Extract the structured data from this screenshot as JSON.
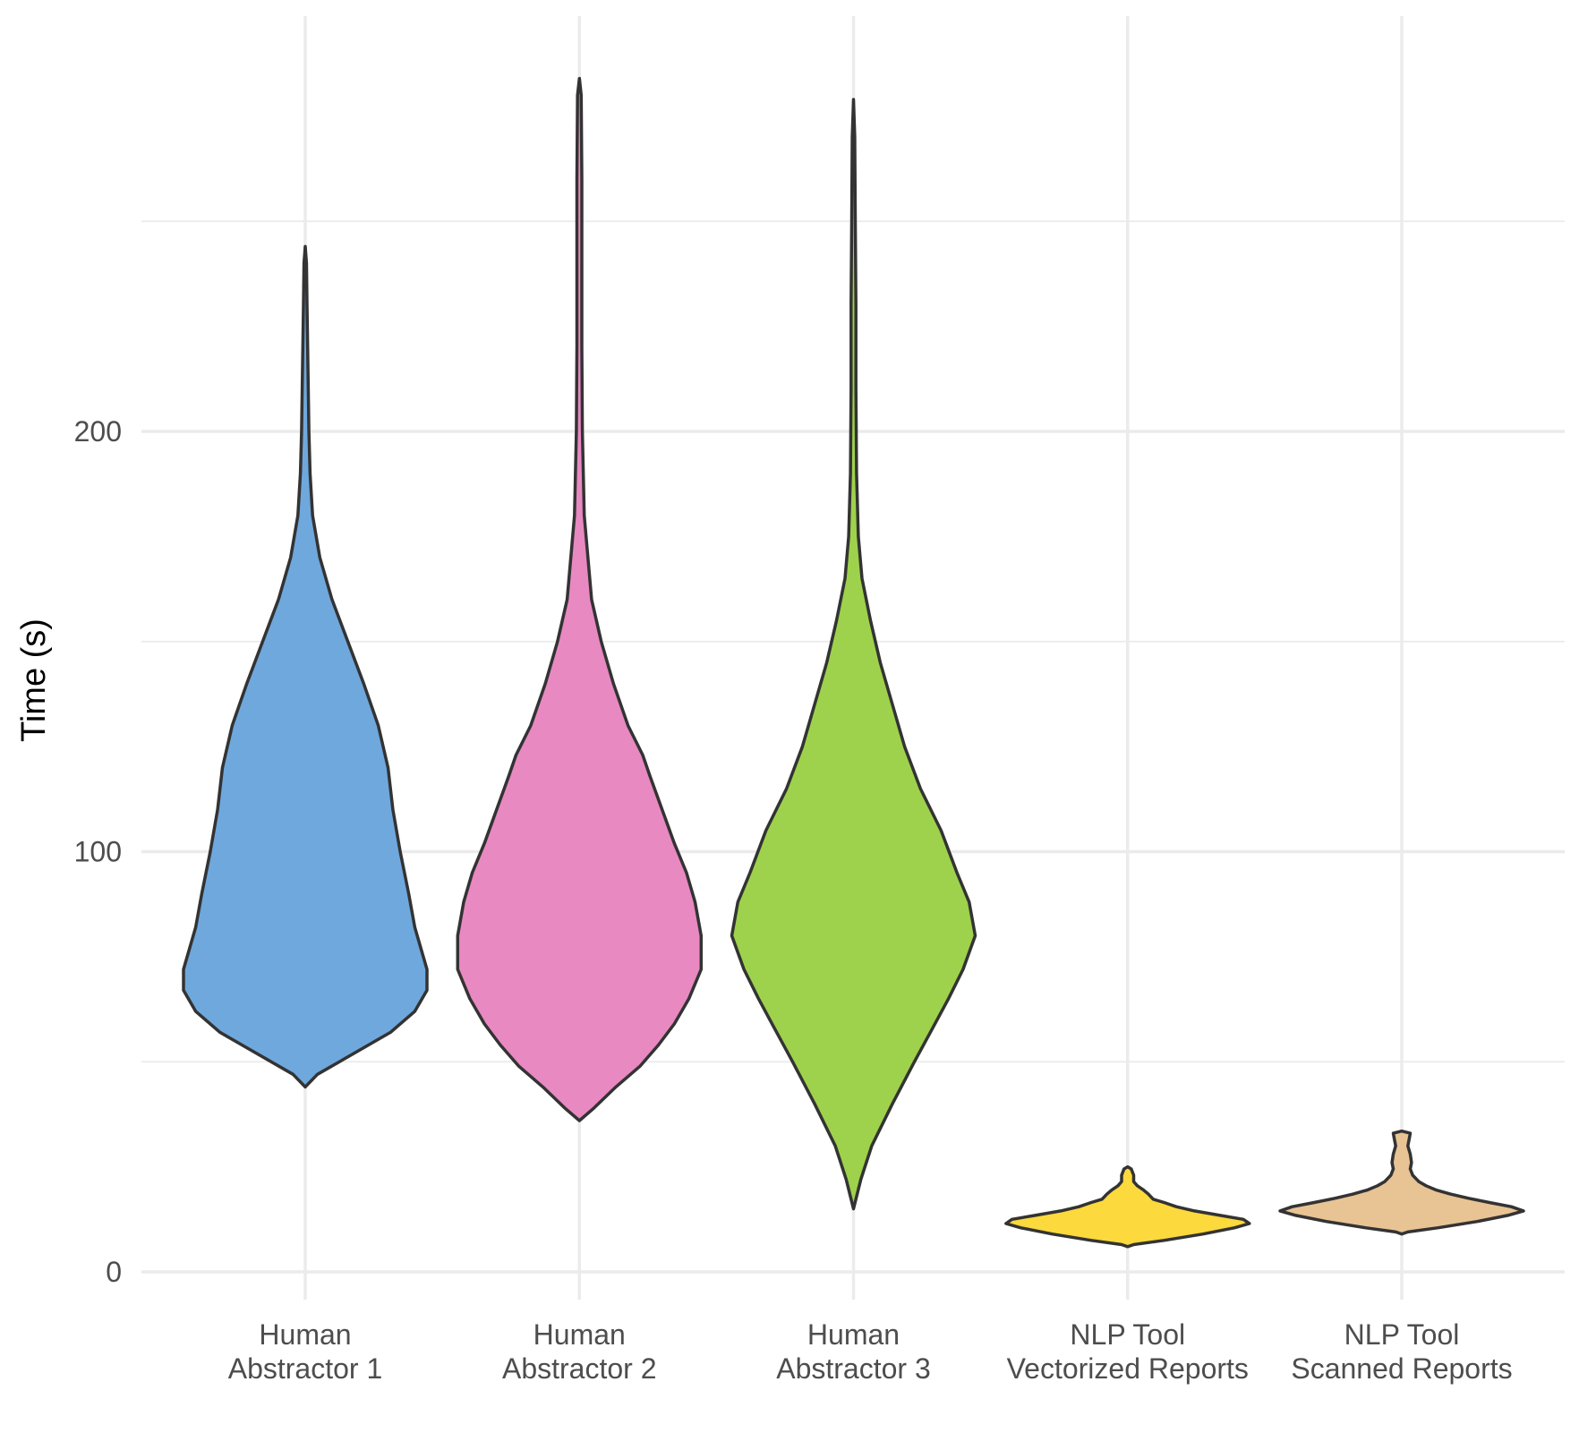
{
  "chart_data": {
    "type": "violin",
    "ylabel": "Time (s)",
    "xlabel": "",
    "ylim": [
      -7,
      298
    ],
    "y_ticks": [
      0,
      100,
      200
    ],
    "y_minor_ticks": [
      50,
      150,
      250
    ],
    "grid": true,
    "legend": "none",
    "categories": [
      {
        "lines": [
          "Human",
          "Abstractor 1"
        ]
      },
      {
        "lines": [
          "Human",
          "Abstractor 2"
        ]
      },
      {
        "lines": [
          "Human",
          "Abstractor 3"
        ]
      },
      {
        "lines": [
          "NLP Tool",
          "Vectorized Reports"
        ]
      },
      {
        "lines": [
          "NLP Tool",
          "Scanned Reports"
        ]
      }
    ],
    "violins": [
      {
        "color": "#6fa8dc",
        "profile": [
          [
            44,
            0
          ],
          [
            47,
            0.1
          ],
          [
            52,
            0.4
          ],
          [
            57,
            0.7
          ],
          [
            62,
            0.9
          ],
          [
            67,
            1
          ],
          [
            72,
            1
          ],
          [
            77,
            0.95
          ],
          [
            82,
            0.9
          ],
          [
            90,
            0.85
          ],
          [
            100,
            0.78
          ],
          [
            110,
            0.72
          ],
          [
            120,
            0.68
          ],
          [
            130,
            0.6
          ],
          [
            140,
            0.48
          ],
          [
            150,
            0.35
          ],
          [
            160,
            0.22
          ],
          [
            170,
            0.12
          ],
          [
            180,
            0.06
          ],
          [
            190,
            0.04
          ],
          [
            200,
            0.03
          ],
          [
            210,
            0.025
          ],
          [
            220,
            0.02
          ],
          [
            230,
            0.015
          ],
          [
            240,
            0.01
          ],
          [
            244,
            0
          ]
        ]
      },
      {
        "color": "#e889c2",
        "profile": [
          [
            36,
            0
          ],
          [
            39,
            0.12
          ],
          [
            44,
            0.3
          ],
          [
            49,
            0.5
          ],
          [
            54,
            0.65
          ],
          [
            59,
            0.78
          ],
          [
            65,
            0.9
          ],
          [
            72,
            1
          ],
          [
            80,
            1
          ],
          [
            88,
            0.95
          ],
          [
            95,
            0.88
          ],
          [
            102,
            0.78
          ],
          [
            110,
            0.68
          ],
          [
            118,
            0.58
          ],
          [
            123,
            0.52
          ],
          [
            130,
            0.4
          ],
          [
            140,
            0.28
          ],
          [
            150,
            0.18
          ],
          [
            160,
            0.1
          ],
          [
            170,
            0.07
          ],
          [
            180,
            0.04
          ],
          [
            200,
            0.025
          ],
          [
            220,
            0.02
          ],
          [
            240,
            0.02
          ],
          [
            260,
            0.02
          ],
          [
            280,
            0.015
          ],
          [
            284,
            0
          ]
        ]
      },
      {
        "color": "#9ed24c",
        "profile": [
          [
            15,
            0
          ],
          [
            22,
            0.06
          ],
          [
            30,
            0.15
          ],
          [
            40,
            0.32
          ],
          [
            50,
            0.5
          ],
          [
            58,
            0.65
          ],
          [
            65,
            0.78
          ],
          [
            72,
            0.9
          ],
          [
            80,
            1
          ],
          [
            88,
            0.95
          ],
          [
            95,
            0.85
          ],
          [
            105,
            0.72
          ],
          [
            115,
            0.55
          ],
          [
            125,
            0.42
          ],
          [
            135,
            0.32
          ],
          [
            145,
            0.22
          ],
          [
            155,
            0.14
          ],
          [
            165,
            0.07
          ],
          [
            175,
            0.04
          ],
          [
            190,
            0.025
          ],
          [
            210,
            0.02
          ],
          [
            230,
            0.02
          ],
          [
            250,
            0.015
          ],
          [
            270,
            0.01
          ],
          [
            279,
            0
          ]
        ]
      },
      {
        "color": "#fcd93c",
        "profile": [
          [
            6,
            0
          ],
          [
            6.5,
            0.05
          ],
          [
            7.5,
            0.3
          ],
          [
            9,
            0.62
          ],
          [
            10.5,
            0.88
          ],
          [
            11.5,
            1
          ],
          [
            12.5,
            0.95
          ],
          [
            13.5,
            0.75
          ],
          [
            14.5,
            0.55
          ],
          [
            15.5,
            0.4
          ],
          [
            16.5,
            0.3
          ],
          [
            17.3,
            0.21
          ],
          [
            18.5,
            0.17
          ],
          [
            19.5,
            0.13
          ],
          [
            20.5,
            0.08
          ],
          [
            21.5,
            0.05
          ],
          [
            23,
            0.05
          ],
          [
            24.5,
            0.03
          ],
          [
            25,
            0
          ]
        ]
      },
      {
        "color": "#e8c394",
        "profile": [
          [
            9,
            0
          ],
          [
            9.5,
            0.05
          ],
          [
            10.5,
            0.3
          ],
          [
            12,
            0.62
          ],
          [
            13.5,
            0.88
          ],
          [
            14.5,
            1
          ],
          [
            15.5,
            0.9
          ],
          [
            16.5,
            0.72
          ],
          [
            17.5,
            0.55
          ],
          [
            18.5,
            0.4
          ],
          [
            19.5,
            0.28
          ],
          [
            20.5,
            0.2
          ],
          [
            21.5,
            0.14
          ],
          [
            23,
            0.09
          ],
          [
            24.5,
            0.07
          ],
          [
            26,
            0.08
          ],
          [
            28,
            0.07
          ],
          [
            30,
            0.05
          ],
          [
            31.5,
            0.06
          ],
          [
            33,
            0.07
          ],
          [
            33.5,
            0
          ]
        ]
      }
    ]
  }
}
